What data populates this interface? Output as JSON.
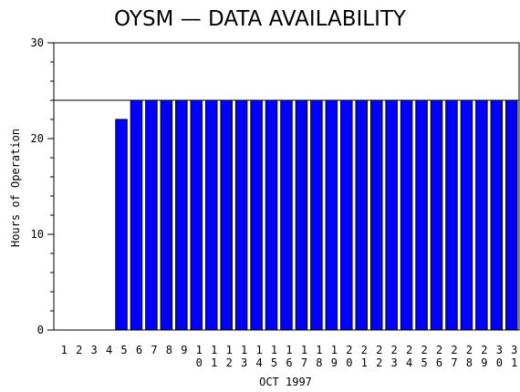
{
  "chart_data": {
    "type": "bar",
    "title": "OYSM — DATA AVAILABILITY",
    "xlabel": "OCT 1997",
    "ylabel": "Hours of Operation",
    "ylim": [
      0,
      30
    ],
    "yticks": [
      "0",
      "10",
      "20",
      "30"
    ],
    "reference_line": 24,
    "categories": [
      "1",
      "2",
      "3",
      "4",
      "5",
      "6",
      "7",
      "8",
      "9",
      "10",
      "11",
      "12",
      "13",
      "14",
      "15",
      "16",
      "17",
      "18",
      "19",
      "20",
      "21",
      "22",
      "23",
      "24",
      "25",
      "26",
      "27",
      "28",
      "29",
      "30",
      "31"
    ],
    "values": [
      0,
      0,
      0,
      0,
      22,
      24,
      24,
      24,
      24,
      24,
      24,
      24,
      24,
      24,
      24,
      24,
      24,
      24,
      24,
      24,
      24,
      24,
      24,
      24,
      24,
      24,
      24,
      24,
      24,
      24,
      24
    ],
    "bar_color": "#0000ff",
    "grid": false
  }
}
